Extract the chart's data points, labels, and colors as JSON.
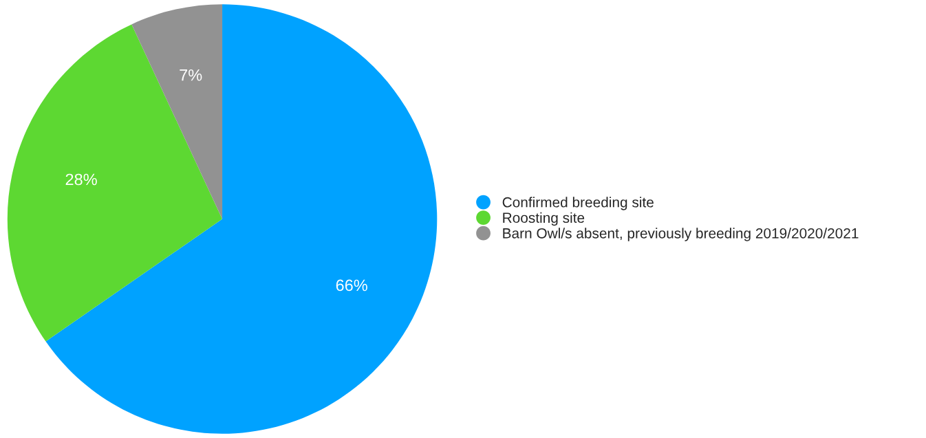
{
  "chart_data": {
    "type": "pie",
    "categories": [
      "Confirmed breeding site",
      "Roosting site",
      "Barn Owl/s absent, previously breeding 2019/2020/2021"
    ],
    "values": [
      66,
      28,
      7
    ],
    "colors": [
      "#00a2ff",
      "#5dd832",
      "#929292"
    ],
    "value_labels": [
      "66%",
      "28%",
      "7%"
    ],
    "legend": "right"
  }
}
